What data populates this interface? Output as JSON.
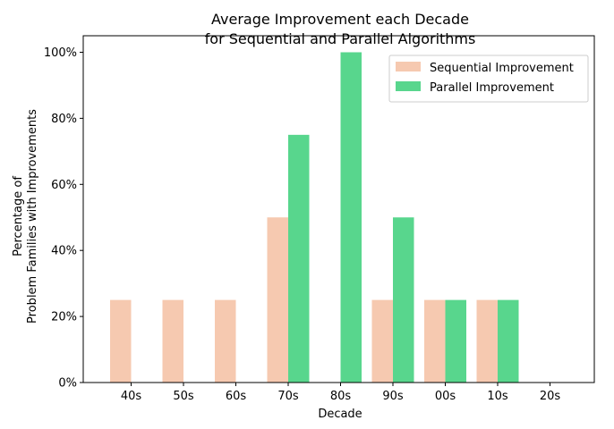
{
  "chart_data": {
    "type": "bar",
    "title_lines": [
      "Average Improvement each Decade",
      "for Sequential and Parallel Algorithms"
    ],
    "xlabel": "Decade",
    "ylabel_lines": [
      "Percentage of",
      "Problem Families with Improvements"
    ],
    "categories": [
      "40s",
      "50s",
      "60s",
      "70s",
      "80s",
      "90s",
      "00s",
      "10s",
      "20s"
    ],
    "ylim": [
      0,
      105
    ],
    "yticks": [
      0,
      20,
      40,
      60,
      80,
      100
    ],
    "ytick_labels": [
      "0%",
      "20%",
      "40%",
      "60%",
      "80%",
      "100%"
    ],
    "legend_position": "top-right",
    "series": [
      {
        "name": "Sequential Improvement",
        "color": "#f6c9b0",
        "values": [
          25,
          25,
          25,
          50,
          0,
          25,
          25,
          25,
          0
        ]
      },
      {
        "name": "Parallel Improvement",
        "color": "#58d68d",
        "values": [
          0,
          0,
          0,
          75,
          100,
          50,
          25,
          25,
          0
        ]
      }
    ]
  }
}
